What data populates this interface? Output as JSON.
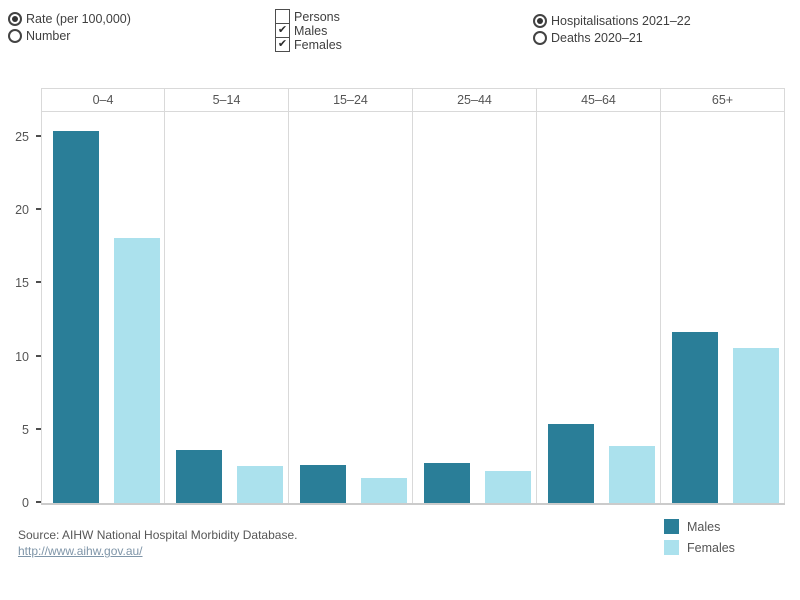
{
  "controls": {
    "metric": {
      "options": [
        {
          "label": "Rate (per 100,000)",
          "selected": true
        },
        {
          "label": "Number",
          "selected": false
        }
      ]
    },
    "sex_filter": {
      "options": [
        {
          "label": "Persons",
          "checked": false
        },
        {
          "label": "Males",
          "checked": true
        },
        {
          "label": "Females",
          "checked": true
        }
      ]
    },
    "measure": {
      "options": [
        {
          "label": "Hospitalisations 2021–22",
          "selected": true
        },
        {
          "label": "Deaths 2020–21",
          "selected": false
        }
      ]
    }
  },
  "chart_data": {
    "type": "bar",
    "categories": [
      "0–4",
      "5–14",
      "15–24",
      "25–44",
      "45–64",
      "65+"
    ],
    "series": [
      {
        "name": "Males",
        "color": "#2a7e98",
        "values": [
          25.4,
          3.6,
          2.6,
          2.7,
          5.4,
          11.7
        ]
      },
      {
        "name": "Females",
        "color": "#abe1ed",
        "values": [
          18.1,
          2.5,
          1.7,
          2.2,
          3.9,
          10.6
        ]
      }
    ],
    "title": "",
    "xlabel": "",
    "ylabel": "Rate (per 100,000)",
    "yticks": [
      0,
      5,
      10,
      15,
      20,
      25
    ],
    "ylim": [
      0,
      26.7
    ],
    "gridlines": "none",
    "legend_position": "bottom-right",
    "panel_layout": "one panel per age group, Males and Females bars side by side"
  },
  "legend": {
    "items": [
      {
        "label": "Males",
        "color": "#2a7e98"
      },
      {
        "label": "Females",
        "color": "#abe1ed"
      }
    ]
  },
  "footer": {
    "source_text": "Source: AIHW National Hospital Morbidity Database.",
    "link_label": "http://www.aihw.gov.au/"
  }
}
